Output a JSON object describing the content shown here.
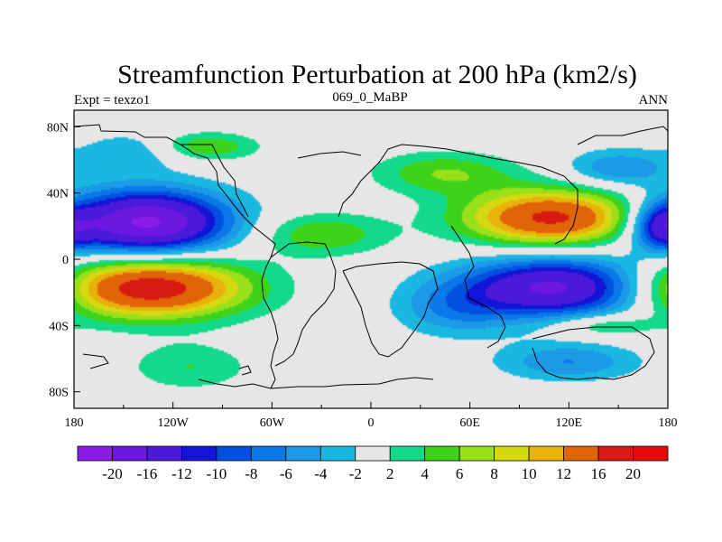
{
  "chart_data": {
    "type": "heatmap",
    "title": "Streamfunction Perturbation at 200 hPa (km2/s)",
    "subtitle_left": "Expt = texzo1",
    "subtitle_center": "069_0_MaBP",
    "subtitle_right": "ANN",
    "x_range": [
      -180,
      180
    ],
    "y_range": [
      -90,
      90
    ],
    "x_ticks": [
      {
        "value": -180,
        "label": "180"
      },
      {
        "value": -120,
        "label": "120W"
      },
      {
        "value": -60,
        "label": "60W"
      },
      {
        "value": 0,
        "label": "0"
      },
      {
        "value": 60,
        "label": "60E"
      },
      {
        "value": 120,
        "label": "120E"
      },
      {
        "value": 180,
        "label": "180"
      }
    ],
    "y_ticks": [
      {
        "value": 80,
        "label": "80N"
      },
      {
        "value": 40,
        "label": "40N"
      },
      {
        "value": 0,
        "label": "0"
      },
      {
        "value": -40,
        "label": "40S"
      },
      {
        "value": -80,
        "label": "80S"
      }
    ],
    "contour_levels": [
      -20,
      -16,
      -12,
      -10,
      -8,
      -6,
      -4,
      -2,
      2,
      4,
      6,
      8,
      10,
      12,
      16,
      20
    ],
    "colorbar_labels": [
      "-20",
      "-16",
      "-12",
      "-10",
      "-8",
      "-6",
      "-4",
      "-2",
      "2",
      "4",
      "6",
      "8",
      "10",
      "12",
      "16",
      "20"
    ],
    "colors": [
      "#8a1ce6",
      "#6d18e0",
      "#4b1ad9",
      "#1414d6",
      "#0050e0",
      "#0a78e6",
      "#1c9ae6",
      "#1ab8e0",
      "#e6e6e6",
      "#13d98a",
      "#3fd21a",
      "#99e01a",
      "#d6d812",
      "#e8b20a",
      "#e06408",
      "#d81a12",
      "#e60a0a"
    ],
    "anomaly_centers_approx": [
      {
        "lon": -137,
        "lat": 22,
        "value": -21,
        "sx": 36,
        "sy": 14
      },
      {
        "lon": -135,
        "lat": -17,
        "value": 19,
        "sx": 42,
        "sy": 13
      },
      {
        "lon": 110,
        "lat": 25,
        "value": 17,
        "sx": 38,
        "sy": 12
      },
      {
        "lon": 112,
        "lat": -17,
        "value": -17,
        "sx": 40,
        "sy": 13
      },
      {
        "lon": -100,
        "lat": 68,
        "value": 6,
        "sx": 22,
        "sy": 6
      },
      {
        "lon": 45,
        "lat": 52,
        "value": 6,
        "sx": 30,
        "sy": 9
      },
      {
        "lon": -30,
        "lat": 15,
        "value": 6,
        "sx": 28,
        "sy": 9
      },
      {
        "lon": -145,
        "lat": 65,
        "value": -4,
        "sx": 22,
        "sy": 8
      },
      {
        "lon": 150,
        "lat": 55,
        "value": -6,
        "sx": 22,
        "sy": 8
      },
      {
        "lon": 175,
        "lat": 20,
        "value": -10,
        "sx": 12,
        "sy": 10
      },
      {
        "lon": -110,
        "lat": -65,
        "value": 4,
        "sx": 26,
        "sy": 10
      },
      {
        "lon": 120,
        "lat": -62,
        "value": -6,
        "sx": 30,
        "sy": 8
      },
      {
        "lon": 140,
        "lat": -40,
        "value": 5,
        "sx": 22,
        "sy": 5
      },
      {
        "lon": 50,
        "lat": -30,
        "value": -5,
        "sx": 25,
        "sy": 12
      }
    ],
    "grid": false,
    "legend": "bottom-colorbar"
  }
}
